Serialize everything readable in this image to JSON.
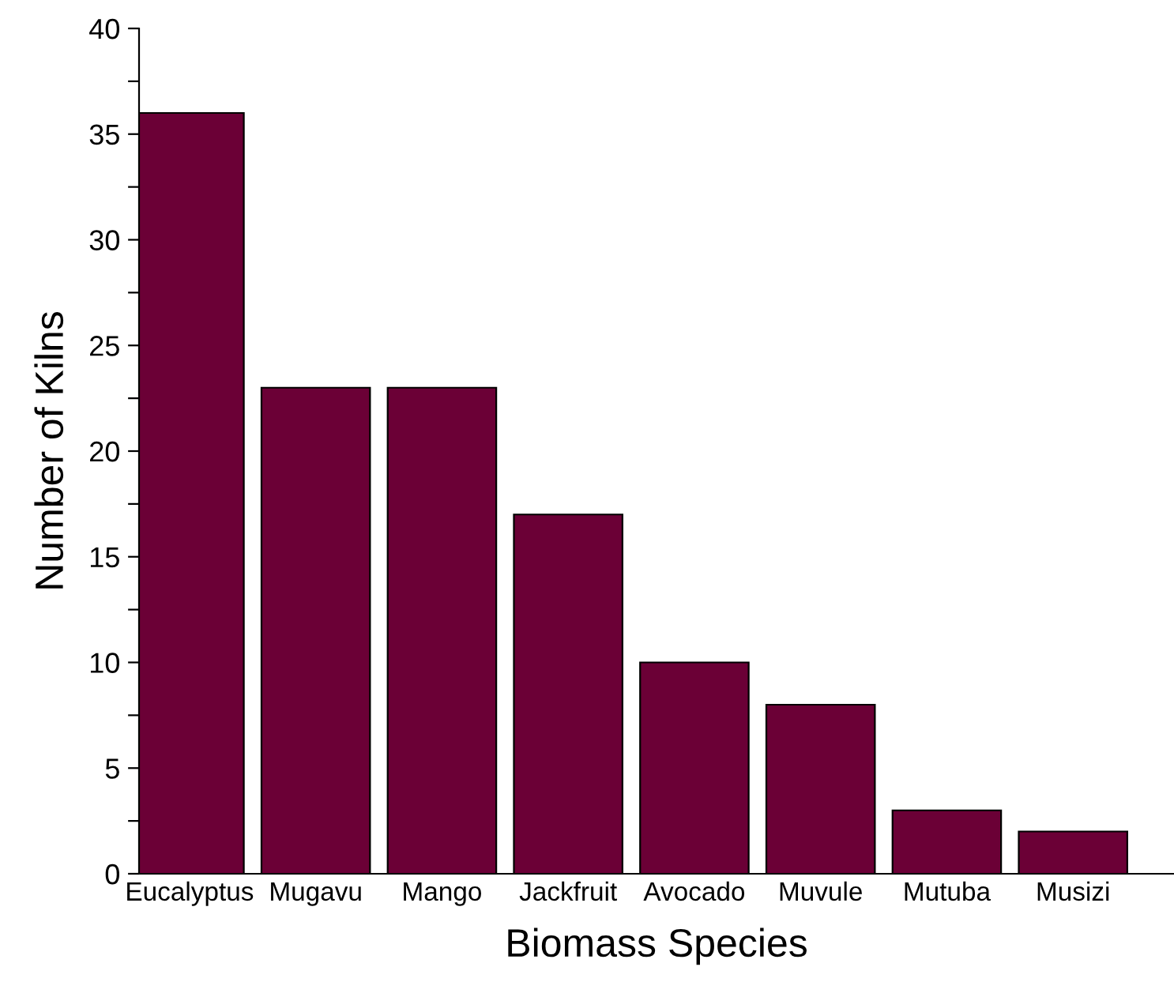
{
  "chart_data": {
    "type": "bar",
    "xlabel": "Biomass Species",
    "ylabel": "Number of Kilns",
    "categories": [
      "Eucalyptus",
      "Mugavu",
      "Mango",
      "Jackfruit",
      "Avocado",
      "Muvule",
      "Mutuba",
      "Musizi"
    ],
    "values": [
      36,
      23,
      23,
      17,
      10,
      8,
      3,
      2
    ],
    "color": "#6b0036",
    "ylim": [
      0,
      40
    ],
    "yticks": [
      0,
      {
        "value": 2.5,
        "label": null
      },
      5,
      {
        "value": 7.5,
        "label": null
      },
      10,
      {
        "value": 12.5,
        "label": null
      },
      15,
      {
        "value": 17.5,
        "label": null
      },
      20,
      {
        "value": 22.5,
        "label": null
      },
      25,
      {
        "value": 27.5,
        "label": null
      },
      30,
      {
        "value": 32.5,
        "label": null
      },
      35,
      {
        "value": 37.5,
        "label": null
      },
      40
    ],
    "grid": false,
    "legend": false
  }
}
